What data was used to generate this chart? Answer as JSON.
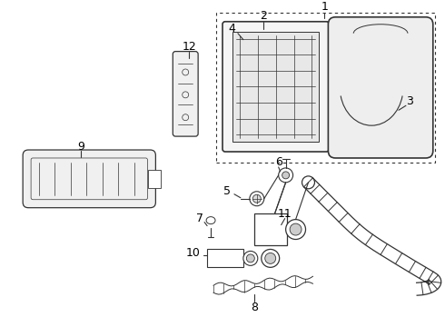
{
  "background_color": "#ffffff",
  "line_color": "#333333",
  "figsize": [
    4.9,
    3.6
  ],
  "dpi": 100
}
